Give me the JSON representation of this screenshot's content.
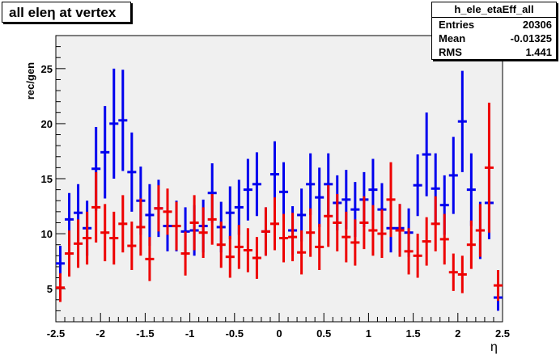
{
  "title": "all eleη at vertex",
  "stats": {
    "name": "h_ele_etaEff_all",
    "rows": [
      {
        "label": "Entries",
        "value": "20306"
      },
      {
        "label": "Mean",
        "value": "-0.01325"
      },
      {
        "label": "RMS",
        "value": "1.441"
      }
    ]
  },
  "colors": {
    "frame_bg": "#f0f0f0",
    "blue": "#0000ee",
    "red": "#ee0000",
    "axis": "#000000"
  },
  "chart_data": {
    "type": "scatter",
    "xlabel": "η",
    "ylabel": "rec/gen",
    "xlim": [
      -2.5,
      2.5
    ],
    "ylim": [
      2,
      28
    ],
    "x_ticks": [
      -2.5,
      -2,
      -1.5,
      -1,
      -0.5,
      0,
      0.5,
      1,
      1.5,
      2,
      2.5
    ],
    "x_tick_labels": [
      "-2.5",
      "-2",
      "-1.5",
      "-1",
      "-0.5",
      "0",
      "0.5",
      "1",
      "1.5",
      "2",
      "2.5"
    ],
    "y_ticks": [
      5,
      10,
      15,
      20,
      25
    ],
    "y_tick_labels": [
      "5",
      "10",
      "15",
      "20",
      "25"
    ],
    "grid": false,
    "bin_width": 0.1,
    "x": [
      -2.45,
      -2.35,
      -2.25,
      -2.15,
      -2.05,
      -1.95,
      -1.85,
      -1.75,
      -1.65,
      -1.55,
      -1.45,
      -1.35,
      -1.25,
      -1.15,
      -1.05,
      -0.95,
      -0.85,
      -0.75,
      -0.65,
      -0.55,
      -0.45,
      -0.35,
      -0.25,
      -0.15,
      -0.05,
      0.05,
      0.15,
      0.25,
      0.35,
      0.45,
      0.55,
      0.65,
      0.75,
      0.85,
      0.95,
      1.05,
      1.15,
      1.25,
      1.35,
      1.45,
      1.55,
      1.65,
      1.75,
      1.85,
      1.95,
      2.05,
      2.15,
      2.25,
      2.35,
      2.45
    ],
    "series": [
      {
        "color": "#0000ee",
        "values": [
          7.3,
          11.3,
          11.9,
          10.5,
          15.9,
          17.4,
          20.0,
          20.3,
          15.6,
          13.0,
          11.7,
          12.3,
          10.7,
          10.7,
          10.2,
          10.3,
          10.7,
          13.7,
          10.6,
          11.9,
          12.4,
          14.0,
          14.5,
          10.2,
          15.4,
          13.8,
          10.3,
          11.7,
          14.5,
          13.3,
          14.5,
          12.8,
          13.1,
          12.2,
          13.1,
          14.0,
          12.2,
          10.5,
          10.5,
          10.1,
          14.4,
          17.2,
          14.1,
          12.6,
          15.3,
          20.2,
          14.0,
          10.3,
          12.8,
          4.2
        ],
        "errors": [
          1.6,
          2.4,
          2.6,
          2.5,
          3.8,
          4.2,
          5.0,
          4.6,
          3.6,
          3.1,
          2.8,
          2.6,
          2.3,
          2.3,
          2.2,
          2.3,
          2.4,
          2.7,
          2.3,
          2.4,
          2.5,
          2.8,
          2.9,
          2.2,
          3.0,
          2.7,
          2.2,
          2.4,
          2.8,
          2.7,
          2.8,
          2.5,
          2.7,
          2.5,
          2.5,
          2.8,
          2.4,
          2.2,
          2.2,
          2.2,
          2.8,
          3.8,
          3.2,
          2.7,
          3.5,
          4.6,
          3.3,
          2.6,
          3.3,
          1.2
        ]
      },
      {
        "color": "#ee0000",
        "values": [
          5.1,
          8.2,
          9.1,
          9.6,
          12.4,
          10.1,
          9.6,
          10.9,
          8.9,
          10.6,
          7.7,
          12.3,
          12.0,
          10.7,
          8.2,
          11.0,
          10.1,
          11.3,
          9.0,
          7.9,
          8.8,
          8.5,
          7.8,
          10.2,
          10.9,
          9.6,
          9.7,
          8.3,
          10.1,
          8.8,
          11.6,
          11.0,
          9.7,
          9.2,
          11.0,
          10.3,
          10.0,
          13.1,
          10.3,
          8.4,
          8.0,
          9.3,
          10.9,
          9.5,
          6.5,
          6.3,
          9.0,
          10.3,
          16.0,
          5.3
        ]
      },
      {
        "color": "#ee0000",
        "errors": [
          1.3,
          2.1,
          2.2,
          2.4,
          3.2,
          2.6,
          2.4,
          2.6,
          2.2,
          2.6,
          2.0,
          2.1,
          2.1,
          2.2,
          2.0,
          2.5,
          2.3,
          2.3,
          2.1,
          1.9,
          2.0,
          2.0,
          1.9,
          2.2,
          2.4,
          2.2,
          2.2,
          2.0,
          2.2,
          2.1,
          2.8,
          2.6,
          2.3,
          2.1,
          2.4,
          2.3,
          2.2,
          3.4,
          2.4,
          2.1,
          2.0,
          2.2,
          2.5,
          2.3,
          1.7,
          1.7,
          2.2,
          2.4,
          5.9,
          1.4
        ]
      }
    ]
  }
}
